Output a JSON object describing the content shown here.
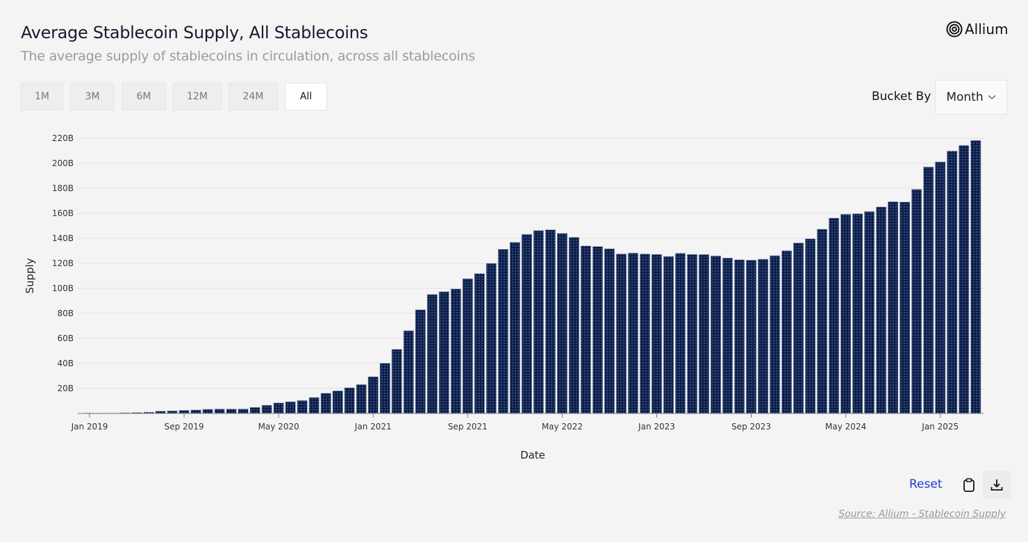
{
  "header": {
    "title": "Average Stablecoin Supply, All Stablecoins",
    "subtitle": "The average supply of stablecoins in circulation, across all stablecoins",
    "logo_text": "Allium"
  },
  "range_buttons": [
    {
      "label": "1M",
      "active": false
    },
    {
      "label": "3M",
      "active": false
    },
    {
      "label": "6M",
      "active": false
    },
    {
      "label": "12M",
      "active": false
    },
    {
      "label": "24M",
      "active": false
    },
    {
      "label": "All",
      "active": true
    }
  ],
  "bucket": {
    "label": "Bucket By",
    "value": "Month"
  },
  "footer": {
    "reset_label": "Reset",
    "copy_icon": "clipboard-icon",
    "download_icon": "download-icon",
    "source": "Source: Allium - Stablecoin Supply"
  },
  "colors": {
    "bar": "#0b1f4d",
    "accent": "#1d3bd1"
  },
  "chart_data": {
    "type": "bar",
    "xlabel": "Date",
    "ylabel": "Supply",
    "ylim": [
      0,
      220
    ],
    "y_unit": "B",
    "yticks": [
      "20B",
      "40B",
      "60B",
      "80B",
      "100B",
      "120B",
      "140B",
      "160B",
      "180B",
      "200B",
      "220B"
    ],
    "ytick_values": [
      20,
      40,
      60,
      80,
      100,
      120,
      140,
      160,
      180,
      200,
      220
    ],
    "xtick_labels": [
      "Jan 2019",
      "Sep 2019",
      "May 2020",
      "Jan 2021",
      "Sep 2021",
      "May 2022",
      "Jan 2023",
      "Sep 2023",
      "May 2024",
      "Jan 2025"
    ],
    "grid": true,
    "categories": [
      "Jan 2019",
      "Feb 2019",
      "Mar 2019",
      "Apr 2019",
      "May 2019",
      "Jun 2019",
      "Jul 2019",
      "Aug 2019",
      "Sep 2019",
      "Oct 2019",
      "Nov 2019",
      "Dec 2019",
      "Jan 2020",
      "Feb 2020",
      "Mar 2020",
      "Apr 2020",
      "May 2020",
      "Jun 2020",
      "Jul 2020",
      "Aug 2020",
      "Sep 2020",
      "Oct 2020",
      "Nov 2020",
      "Dec 2020",
      "Jan 2021",
      "Feb 2021",
      "Mar 2021",
      "Apr 2021",
      "May 2021",
      "Jun 2021",
      "Jul 2021",
      "Aug 2021",
      "Sep 2021",
      "Oct 2021",
      "Nov 2021",
      "Dec 2021",
      "Jan 2022",
      "Feb 2022",
      "Mar 2022",
      "Apr 2022",
      "May 2022",
      "Jun 2022",
      "Jul 2022",
      "Aug 2022",
      "Sep 2022",
      "Oct 2022",
      "Nov 2022",
      "Dec 2022",
      "Jan 2023",
      "Feb 2023",
      "Mar 2023",
      "Apr 2023",
      "May 2023",
      "Jun 2023",
      "Jul 2023",
      "Aug 2023",
      "Sep 2023",
      "Oct 2023",
      "Nov 2023",
      "Dec 2023",
      "Jan 2024",
      "Feb 2024",
      "Mar 2024",
      "Apr 2024",
      "May 2024",
      "Jun 2024",
      "Jul 2024",
      "Aug 2024",
      "Sep 2024",
      "Oct 2024",
      "Nov 2024",
      "Dec 2024",
      "Jan 2025",
      "Feb 2025",
      "Mar 2025",
      "Apr 2025"
    ],
    "values": [
      0.4,
      0.3,
      0.3,
      0.6,
      0.8,
      1.1,
      1.9,
      2.1,
      2.5,
      2.8,
      3.4,
      3.6,
      3.6,
      3.6,
      4.9,
      6.6,
      8.5,
      9.4,
      10.4,
      12.8,
      16.2,
      18.1,
      20.6,
      23.2,
      29.4,
      40.2,
      51.3,
      66.2,
      83.0,
      95.2,
      97.4,
      99.6,
      107.8,
      111.9,
      120.0,
      131.3,
      136.9,
      143.3,
      146.3,
      146.9,
      144.0,
      140.9,
      134.0,
      133.5,
      131.7,
      127.6,
      128.3,
      127.6,
      127.2,
      125.6,
      128.1,
      127.2,
      127.1,
      126.0,
      124.3,
      123.0,
      122.6,
      123.4,
      126.2,
      130.2,
      136.4,
      139.7,
      147.4,
      156.3,
      159.3,
      159.7,
      161.5,
      165.2,
      169.3,
      169.1,
      179.2,
      197.1,
      201.2,
      209.9,
      214.4,
      218.3
    ]
  }
}
